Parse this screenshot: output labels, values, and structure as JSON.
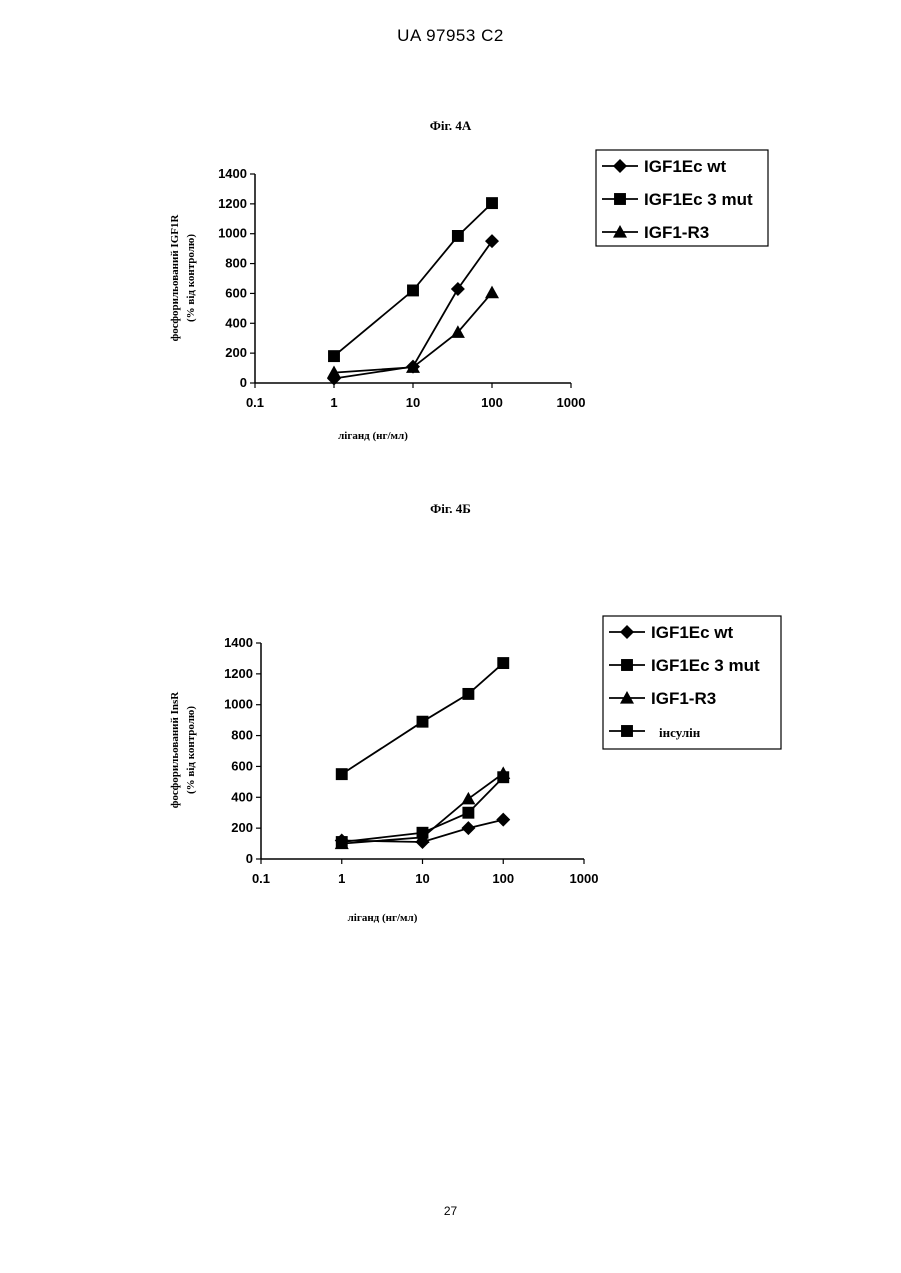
{
  "header": {
    "doc_id": "UA   97953   C2"
  },
  "page_number": "27",
  "figures": [
    {
      "title": "Фіг. 4А"
    },
    {
      "title": "Фіг. 4Б"
    }
  ],
  "chart_data": [
    {
      "type": "line",
      "x_scale": "log",
      "xlim": [
        0.1,
        1000
      ],
      "ylim": [
        0,
        1400
      ],
      "xticks": [
        "0.1",
        "1",
        "10",
        "100",
        "1000"
      ],
      "yticks": [
        "0",
        "200",
        "400",
        "600",
        "800",
        "1000",
        "1200",
        "1400"
      ],
      "xlabel": "ліганд (нг/мл)",
      "ylabel": [
        "фосфорильований IGF1R",
        "(% від контролю)"
      ],
      "legend_position": "top-right",
      "series": [
        {
          "name": "IGF1Ec wt",
          "marker": "diamond",
          "points": [
            [
              1,
              30
            ],
            [
              10,
              110
            ],
            [
              37,
              630
            ],
            [
              100,
              950
            ]
          ]
        },
        {
          "name": "IGF1Ec 3 mut",
          "marker": "square",
          "points": [
            [
              1,
              180
            ],
            [
              10,
              620
            ],
            [
              37,
              985
            ],
            [
              100,
              1205
            ]
          ]
        },
        {
          "name": "IGF1-R3",
          "marker": "triangle",
          "points": [
            [
              1,
              70
            ],
            [
              10,
              105
            ],
            [
              37,
              340
            ],
            [
              100,
              605
            ]
          ]
        }
      ]
    },
    {
      "type": "line",
      "x_scale": "log",
      "xlim": [
        0.1,
        1000
      ],
      "ylim": [
        0,
        1400
      ],
      "xticks": [
        "0.1",
        "1",
        "10",
        "100",
        "1000"
      ],
      "yticks": [
        "0",
        "200",
        "400",
        "600",
        "800",
        "1000",
        "1200",
        "1400"
      ],
      "xlabel": "ліганд (нг/мл)",
      "ylabel": [
        "фосфорильований InsR",
        "(% від контролю)"
      ],
      "legend_position": "top-right",
      "series": [
        {
          "name": "IGF1Ec wt",
          "marker": "diamond",
          "points": [
            [
              1,
              120
            ],
            [
              10,
              110
            ],
            [
              37,
              200
            ],
            [
              100,
              255
            ]
          ]
        },
        {
          "name": "IGF1Ec 3 mut",
          "marker": "square",
          "points": [
            [
              1,
              110
            ],
            [
              10,
              170
            ],
            [
              37,
              300
            ],
            [
              100,
              530
            ]
          ]
        },
        {
          "name": "IGF1-R3",
          "marker": "triangle",
          "points": [
            [
              1,
              100
            ],
            [
              10,
              140
            ],
            [
              37,
              390
            ],
            [
              100,
              555
            ]
          ]
        },
        {
          "name": "інсулін",
          "marker": "square",
          "points": [
            [
              1,
              550
            ],
            [
              10,
              890
            ],
            [
              37,
              1070
            ],
            [
              100,
              1270
            ]
          ]
        }
      ]
    }
  ]
}
